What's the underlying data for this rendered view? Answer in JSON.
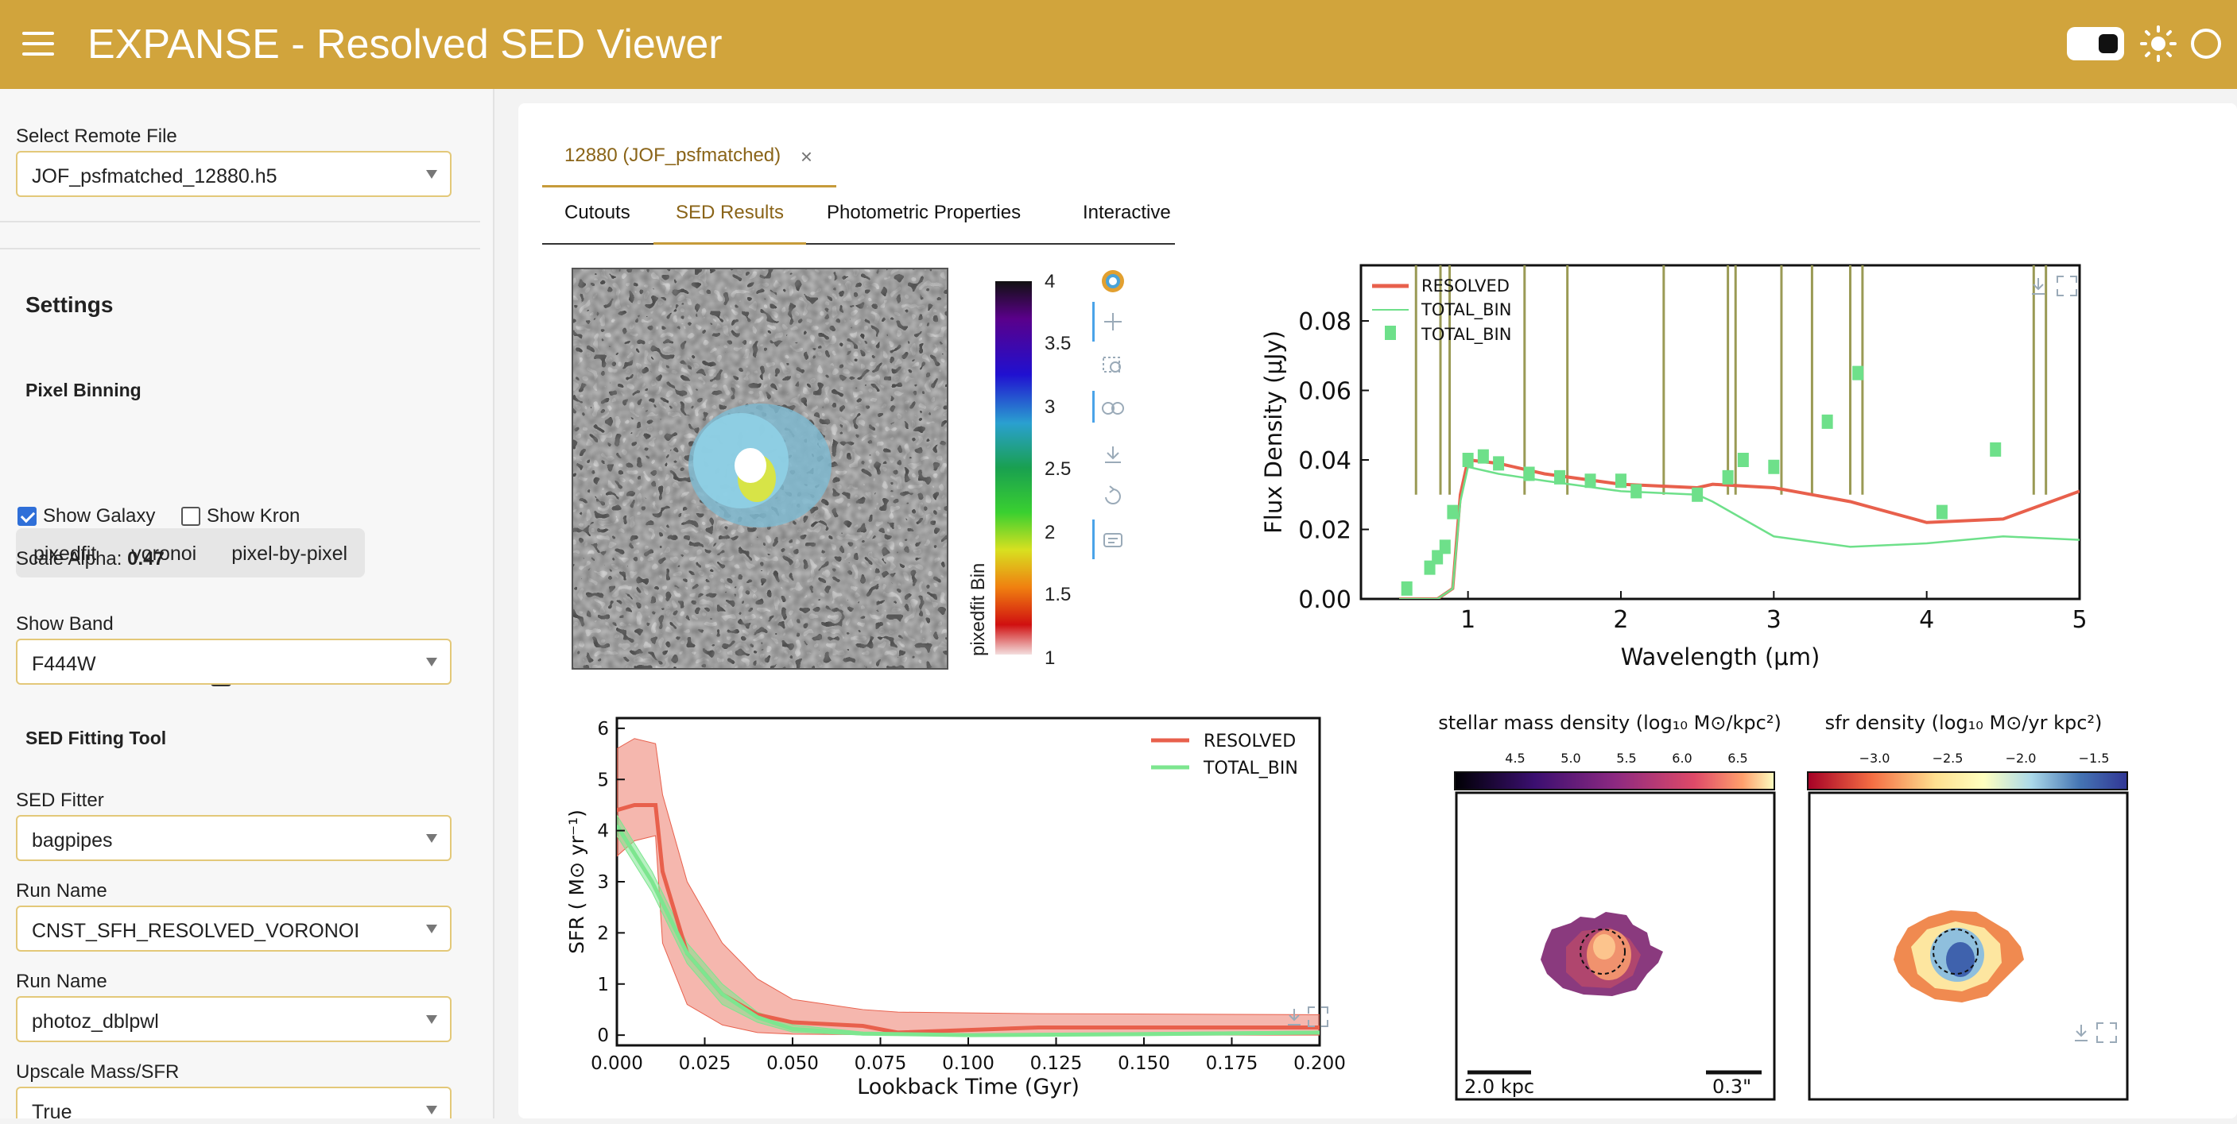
{
  "header": {
    "title": "EXPANSE - Resolved SED Viewer"
  },
  "icons": {
    "menu": "hamburger-icon",
    "theme": "sun-icon",
    "status": "circle-icon"
  },
  "sidebar": {
    "remote_file_label": "Select Remote File",
    "remote_file_value": "JOF_psfmatched_12880.h5",
    "settings_heading": "Settings",
    "pixel_binning_heading": "Pixel Binning",
    "binning_options": [
      "pixedfit",
      "voronoi",
      "pixel-by-pixel"
    ],
    "show_galaxy": "Show Galaxy",
    "show_kron": "Show Kron",
    "scale_alpha_label": "Scale Alpha: ",
    "scale_alpha_value": "0.47",
    "scale_alpha_fraction": 0.47,
    "show_band_label": "Show Band",
    "show_band_value": "F444W",
    "sed_tool_heading": "SED Fitting Tool",
    "sed_fitter_label": "SED Fitter",
    "sed_fitter_value": "bagpipes",
    "run_name_label": "Run Name",
    "run_name_value": "CNST_SFH_RESOLVED_VORONOI",
    "run_name2_label": "Run Name",
    "run_name2_value": "photoz_dblpwl",
    "upscale_label": "Upscale Mass/SFR",
    "upscale_value": "True"
  },
  "main": {
    "doc_tab": "12880 (JOF_psfmatched)",
    "tabs": [
      "Cutouts",
      "SED Results",
      "Photometric Properties",
      "Interactive"
    ]
  },
  "colorbar": {
    "label": "pixedfit Bin",
    "ticks": [
      "4",
      "3.5",
      "3",
      "2.5",
      "2",
      "1.5",
      "1"
    ]
  },
  "chart_data": [
    {
      "type": "line",
      "xlabel": "Wavelength (μm)",
      "ylabel": "Flux Density (μJy)",
      "xlim": [
        0.3,
        5
      ],
      "ylim": [
        0,
        0.096
      ],
      "xticks": [
        "1",
        "2",
        "3",
        "4",
        "5"
      ],
      "yticks": [
        "0.00",
        "0.02",
        "0.04",
        "0.06",
        "0.08"
      ],
      "legend": [
        "RESOLVED",
        "TOTAL_BIN",
        "TOTAL_BIN"
      ],
      "legend_position": "top-left",
      "series": [
        {
          "name": "RESOLVED",
          "color": "#e8604c",
          "x": [
            0.55,
            0.8,
            0.9,
            0.95,
            1.0,
            1.2,
            1.5,
            2.0,
            2.5,
            2.6,
            3.0,
            3.5,
            4.0,
            4.5,
            5.0
          ],
          "y": [
            0.0,
            0.0,
            0.003,
            0.03,
            0.04,
            0.039,
            0.036,
            0.033,
            0.032,
            0.033,
            0.032,
            0.028,
            0.022,
            0.023,
            0.031
          ]
        },
        {
          "name": "TOTAL_BIN",
          "color": "#6ee08a",
          "x": [
            0.55,
            0.8,
            0.9,
            0.95,
            1.0,
            1.2,
            1.5,
            2.0,
            2.5,
            2.6,
            3.0,
            3.5,
            4.0,
            4.5,
            5.0
          ],
          "y": [
            0.0,
            0.0,
            0.003,
            0.028,
            0.038,
            0.036,
            0.034,
            0.031,
            0.03,
            0.028,
            0.018,
            0.015,
            0.016,
            0.018,
            0.017
          ]
        },
        {
          "name": "TOTAL_BIN",
          "color": "#6ee08a",
          "x": [
            0.6,
            0.75,
            0.8,
            0.85,
            0.9,
            1.0,
            1.1,
            1.2,
            1.4,
            1.6,
            1.8,
            2.0,
            2.1,
            2.5,
            2.7,
            2.8,
            3.0,
            3.35,
            3.55,
            4.1,
            4.45
          ],
          "y": [
            0.003,
            0.009,
            0.012,
            0.015,
            0.025,
            0.04,
            0.041,
            0.039,
            0.036,
            0.035,
            0.034,
            0.034,
            0.031,
            0.03,
            0.035,
            0.04,
            0.038,
            0.051,
            0.065,
            0.025,
            0.043
          ]
        }
      ]
    },
    {
      "type": "area",
      "xlabel": "Lookback Time (Gyr)",
      "ylabel": "SFR ( M⊙ yr⁻¹)",
      "xlim": [
        0,
        0.2
      ],
      "ylim": [
        -0.2,
        6.2
      ],
      "xticks": [
        "0.000",
        "0.025",
        "0.050",
        "0.075",
        "0.100",
        "0.125",
        "0.150",
        "0.175",
        "0.200"
      ],
      "yticks": [
        "0",
        "1",
        "2",
        "3",
        "4",
        "5",
        "6"
      ],
      "legend": [
        "RESOLVED",
        "TOTAL_BIN"
      ],
      "legend_position": "top-right",
      "series": [
        {
          "name": "RESOLVED",
          "color": "#e8604c",
          "x": [
            0.0,
            0.005,
            0.011,
            0.013,
            0.02,
            0.03,
            0.04,
            0.05,
            0.07,
            0.08,
            0.12,
            0.2
          ],
          "y": [
            4.4,
            4.5,
            4.5,
            3.2,
            1.6,
            0.8,
            0.4,
            0.25,
            0.18,
            0.05,
            0.15,
            0.15
          ],
          "upper": [
            5.6,
            5.8,
            5.7,
            4.7,
            3.0,
            1.8,
            1.1,
            0.7,
            0.5,
            0.45,
            0.42,
            0.4
          ],
          "lower": [
            3.5,
            3.8,
            3.9,
            1.8,
            0.6,
            0.2,
            0.05,
            0.02,
            0.01,
            0.0,
            0.0,
            0.0
          ]
        },
        {
          "name": "TOTAL_BIN",
          "color": "#7de68f",
          "x": [
            0.0,
            0.01,
            0.02,
            0.03,
            0.04,
            0.05,
            0.07,
            0.1,
            0.15,
            0.2
          ],
          "y": [
            4.1,
            3.0,
            1.6,
            0.8,
            0.35,
            0.12,
            0.03,
            0.0,
            0.02,
            0.05
          ],
          "upper": [
            4.3,
            3.2,
            1.8,
            1.0,
            0.45,
            0.2,
            0.06,
            0.02,
            0.05,
            0.08
          ],
          "lower": [
            3.9,
            2.8,
            1.4,
            0.6,
            0.25,
            0.06,
            0.0,
            0.0,
            0.0,
            0.02
          ]
        }
      ]
    },
    {
      "type": "heatmap",
      "title": "stellar mass density (log₁₀ M⊙/kpc²)",
      "colorbar_ticks": [
        "4.5",
        "5.0",
        "5.5",
        "6.0",
        "6.5"
      ],
      "scalebar_left": "2.0 kpc",
      "scalebar_right": "0.3\""
    },
    {
      "type": "heatmap",
      "title": "sfr density (log₁₀ M⊙/yr kpc²)",
      "colorbar_ticks": [
        "−3.0",
        "−2.5",
        "−2.0",
        "−1.5"
      ]
    }
  ]
}
